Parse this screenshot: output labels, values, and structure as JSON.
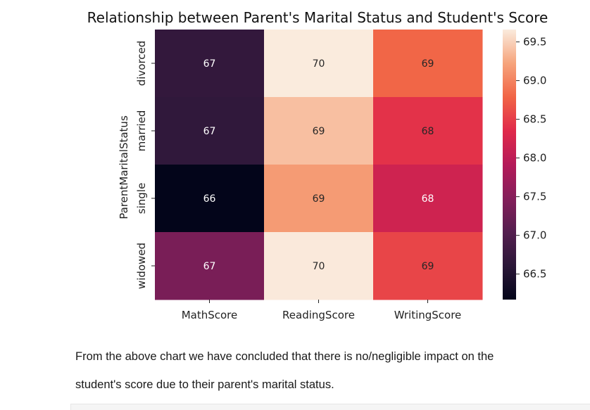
{
  "chart_data": {
    "type": "heatmap",
    "title": "Relationship between Parent's Marital Status and Student's Score",
    "ylabel": "ParentMaritalStatus",
    "xlabel": "",
    "x_categories": [
      "MathScore",
      "ReadingScore",
      "WritingScore"
    ],
    "y_categories": [
      "divorced",
      "married",
      "single",
      "widowed"
    ],
    "values": [
      [
        66.69,
        69.66,
        68.8
      ],
      [
        66.66,
        69.39,
        68.42
      ],
      [
        66.17,
        69.16,
        68.17
      ],
      [
        67.37,
        69.65,
        68.56
      ]
    ],
    "annotations": [
      [
        "67",
        "70",
        "69"
      ],
      [
        "67",
        "69",
        "68"
      ],
      [
        "66",
        "69",
        "68"
      ],
      [
        "67",
        "70",
        "69"
      ]
    ],
    "colormap": "rocket",
    "vmin": 66.17,
    "vmax": 69.66,
    "colorbar_ticks": [
      "66.5",
      "67.0",
      "67.5",
      "68.0",
      "68.5",
      "69.0",
      "69.5"
    ],
    "colorbar_tick_values": [
      66.5,
      67.0,
      67.5,
      68.0,
      68.5,
      69.0,
      69.5
    ]
  },
  "caption": {
    "line1": "From the above chart we have concluded that there is no/negligible impact on the",
    "line2": "student's score due to their parent's marital status."
  }
}
